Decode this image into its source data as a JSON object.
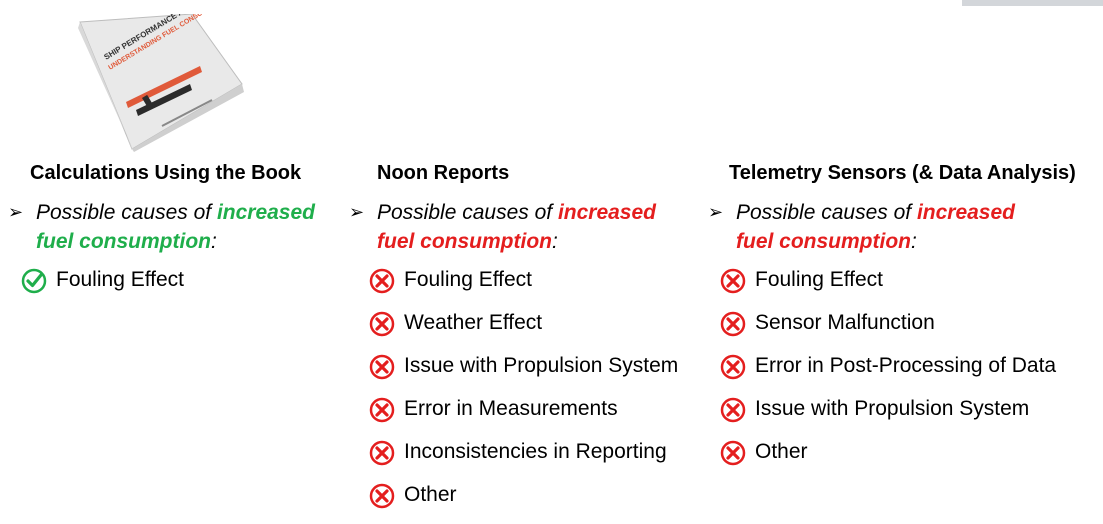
{
  "columns": [
    {
      "title": "Calculations Using the Book",
      "cause_prefix": "Possible causes of ",
      "cause_highlight_1": "increased",
      "cause_highlight_2": "fuel consumption",
      "cause_suffix": ":",
      "highlight_color": "#1fae4b",
      "icon": "check-circle-icon",
      "items": [
        "Fouling Effect"
      ]
    },
    {
      "title": "Noon Reports",
      "cause_prefix": "Possible causes of ",
      "cause_highlight_1": "increased",
      "cause_highlight_2": "fuel consumption",
      "cause_suffix": ":",
      "highlight_color": "#e41e1e",
      "icon": "x-circle-icon",
      "items": [
        "Fouling Effect",
        "Weather Effect",
        "Issue with Propulsion System",
        "Error in Measurements",
        "Inconsistencies in Reporting",
        "Other"
      ]
    },
    {
      "title": "Telemetry Sensors (& Data Analysis)",
      "cause_prefix": "Possible causes of ",
      "cause_highlight_1": "increased",
      "cause_highlight_2": "fuel consumption",
      "cause_suffix": ":",
      "highlight_color": "#e41e1e",
      "icon": "x-circle-icon",
      "items": [
        "Fouling Effect",
        "Sensor Malfunction",
        "Error in Post-Processing of Data",
        "Issue with Propulsion System",
        "Other"
      ]
    }
  ],
  "book": {
    "title_line_1": "SHIP PERFORMANCE ASSESSMENT",
    "title_line_2": "UNDERSTANDING FUEL CONSUMPTION"
  },
  "colors": {
    "check": "#1fae4b",
    "cross": "#e41e1e",
    "book_accent": "#e05a3a"
  }
}
